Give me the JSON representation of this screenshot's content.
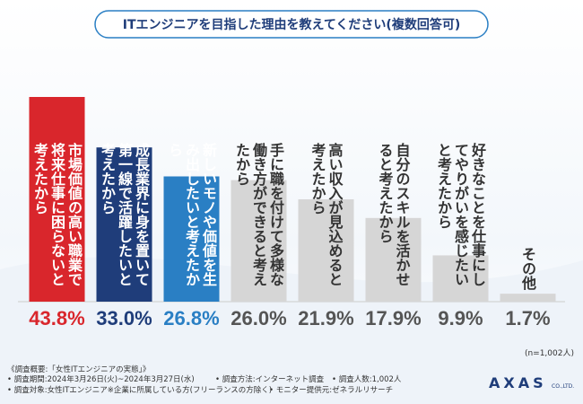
{
  "chart_data": {
    "type": "bar",
    "title": "ITエンジニアを目指した理由を教えてください(複数回答可)",
    "categories": [
      "市場価値の高い職業で将来仕事に困らないと考えたから",
      "成長業界に身を置いて第一線で活躍したいと考えたから",
      "新しいモノや価値を生み出したいと考えたから",
      "手に職を付けて多様な働き方ができると考えたから",
      "高い収入が見込めると考えたから",
      "自分のスキルを活かせると考えたから",
      "好きなことを仕事にしてやりがいを感じたいと考えたから",
      "その他"
    ],
    "values": [
      43.8,
      33.0,
      26.8,
      26.0,
      21.9,
      17.9,
      9.9,
      1.7
    ],
    "value_labels": [
      "43.8%",
      "33.0%",
      "26.8%",
      "26.0%",
      "21.9%",
      "17.9%",
      "9.9%",
      "1.7%"
    ],
    "colors": [
      "#d9262c",
      "#1f3d7a",
      "#2a7fc4",
      "#d6d6d6",
      "#d6d6d6",
      "#d6d6d6",
      "#d6d6d6",
      "#d6d6d6"
    ],
    "text_colors": [
      "#ffffff",
      "#ffffff",
      "#ffffff",
      "#333333",
      "#333333",
      "#333333",
      "#333333",
      "#333333"
    ],
    "label_colors": [
      "#d9262c",
      "#1f3d7a",
      "#2a7fc4",
      "#555555",
      "#555555",
      "#555555",
      "#555555",
      "#555555"
    ],
    "note": "(n=1,002人)"
  },
  "footer": {
    "heading": "《調査概要:「女性ITエンジニアの実態」》",
    "items": [
      "• 調査期間:2024年3月26日(火)~2024年3月27日(水)",
      "• 調査方法:インターネット調査",
      "• 調査人数:1,002人",
      "• 調査対象:女性ITエンジニア※企業に所属している方(フリーランスの方除く)",
      "• モニター提供元:ゼネラルリサーチ"
    ],
    "logo": "AXAS",
    "logo_suffix": "CO.,LTD."
  }
}
